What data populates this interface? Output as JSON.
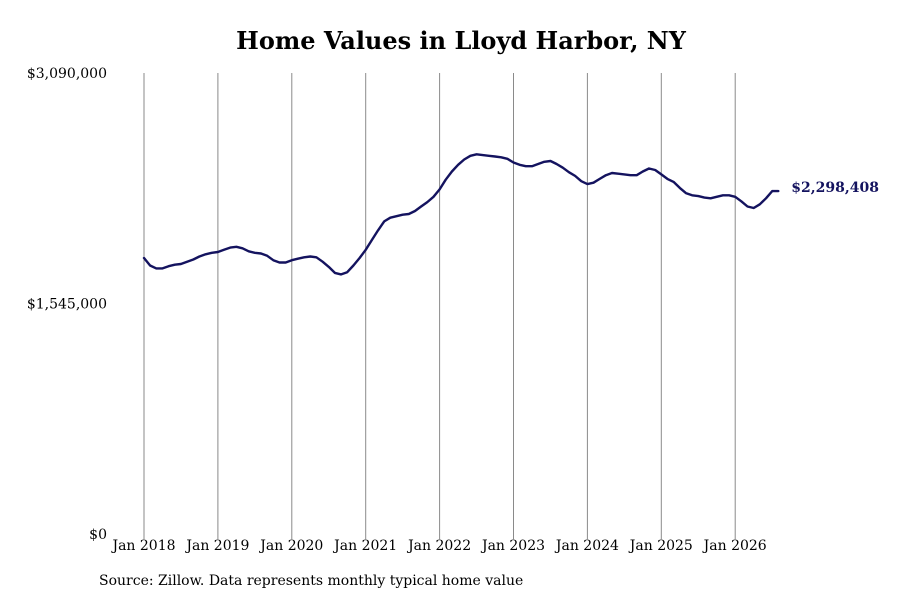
{
  "chart_data": {
    "type": "line",
    "title": "Home Values in Lloyd Harbor, NY",
    "xlabel": "",
    "ylabel": "",
    "ylim": [
      0,
      3090000
    ],
    "y_ticks": [
      "$0",
      "$1,545,000",
      "$3,090,000"
    ],
    "x_ticks": [
      "Jan 2018",
      "Jan 2019",
      "Jan 2020",
      "Jan 2021",
      "Jan 2022",
      "Jan 2023",
      "Jan 2024",
      "Jan 2025",
      "Jan 2026"
    ],
    "x_tick_years": [
      2018,
      2019,
      2020,
      2021,
      2022,
      2023,
      2024,
      2025,
      2026
    ],
    "grid": "vertical",
    "line_color": "#14135f",
    "last_value_label": "$2,298,408",
    "series": [
      {
        "x": [
          2018.0,
          2018.083,
          2018.167,
          2018.25,
          2018.333,
          2018.417,
          2018.5,
          2018.583,
          2018.667,
          2018.75,
          2018.833,
          2018.917,
          2019.0,
          2019.083,
          2019.167,
          2019.25,
          2019.333,
          2019.417,
          2019.5,
          2019.583,
          2019.667,
          2019.75,
          2019.833,
          2019.917,
          2020.0,
          2020.083,
          2020.167,
          2020.25,
          2020.333,
          2020.417,
          2020.5,
          2020.583,
          2020.667,
          2020.75,
          2020.833,
          2020.917,
          2021.0,
          2021.083,
          2021.167,
          2021.25,
          2021.333,
          2021.417,
          2021.5,
          2021.583,
          2021.667,
          2021.75,
          2021.833,
          2021.917,
          2022.0,
          2022.083,
          2022.167,
          2022.25,
          2022.333,
          2022.417,
          2022.5,
          2022.583,
          2022.667,
          2022.75,
          2022.833,
          2022.917,
          2023.0,
          2023.083,
          2023.167,
          2023.25,
          2023.333,
          2023.417,
          2023.5,
          2023.583,
          2023.667,
          2023.75,
          2023.833,
          2023.917,
          2024.0,
          2024.083,
          2024.167,
          2024.25,
          2024.333,
          2024.417,
          2024.5,
          2024.583,
          2024.667,
          2024.75,
          2024.833,
          2024.917,
          2025.0,
          2025.083,
          2025.167,
          2025.25,
          2025.333,
          2025.417,
          2025.5,
          2025.583,
          2025.667,
          2025.75,
          2025.833,
          2025.917,
          2026.0,
          2026.083,
          2026.167,
          2026.25,
          2026.333,
          2026.417,
          2026.5,
          2026.583
        ],
        "y": [
          1850000,
          1800000,
          1780000,
          1780000,
          1795000,
          1805000,
          1810000,
          1825000,
          1840000,
          1860000,
          1875000,
          1885000,
          1890000,
          1905000,
          1920000,
          1925000,
          1915000,
          1895000,
          1885000,
          1880000,
          1865000,
          1835000,
          1820000,
          1820000,
          1835000,
          1845000,
          1855000,
          1860000,
          1855000,
          1825000,
          1790000,
          1750000,
          1740000,
          1755000,
          1800000,
          1850000,
          1905000,
          1970000,
          2035000,
          2095000,
          2120000,
          2130000,
          2140000,
          2145000,
          2165000,
          2195000,
          2225000,
          2260000,
          2310000,
          2375000,
          2430000,
          2475000,
          2510000,
          2535000,
          2545000,
          2540000,
          2535000,
          2530000,
          2525000,
          2515000,
          2490000,
          2475000,
          2465000,
          2465000,
          2480000,
          2495000,
          2500000,
          2480000,
          2455000,
          2425000,
          2400000,
          2365000,
          2345000,
          2355000,
          2380000,
          2405000,
          2420000,
          2415000,
          2410000,
          2405000,
          2405000,
          2430000,
          2450000,
          2440000,
          2410000,
          2380000,
          2360000,
          2320000,
          2285000,
          2270000,
          2265000,
          2255000,
          2250000,
          2260000,
          2270000,
          2270000,
          2260000,
          2230000,
          2195000,
          2185000,
          2210000,
          2250000,
          2298408,
          2298408
        ]
      }
    ]
  },
  "footer": {
    "source": "Source: Zillow. Data represents monthly typical home value"
  }
}
